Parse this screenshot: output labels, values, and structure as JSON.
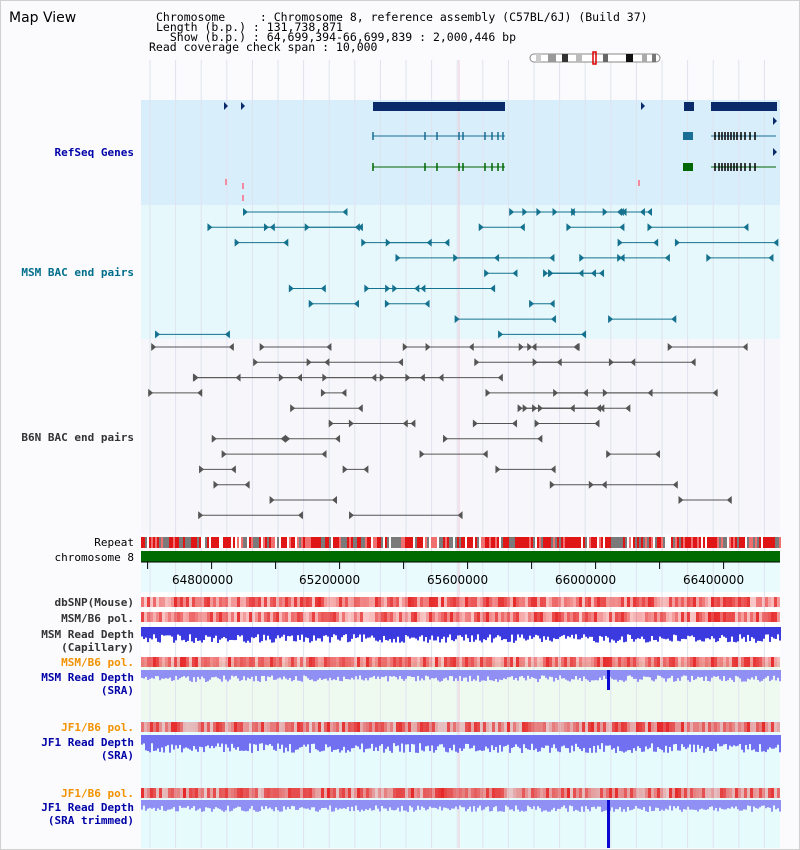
{
  "header": {
    "map_title": "Map View",
    "chromosome_line": "Chromosome     : Chromosome 8, reference assembly (C57BL/6J) (Build 37)",
    "length_line": "Length (b.p.) : 131,738,871",
    "show_line": "  Show (b.p.) : 64,699,394-66,699,839 : 2,000,446 bp",
    "coverage_line": "Read coverage check span : 10,000"
  },
  "tracks": {
    "refseq": "RefSeq Genes",
    "msm_bac": "MSM BAC end pairs",
    "b6n_bac": "B6N BAC end pairs",
    "repeat": "Repeat",
    "chromosome": "chromosome 8",
    "dbsnp": "dbSNP(Mouse)",
    "msm_b6_pol_1": "MSM/B6 pol.",
    "msm_depth_cap_1": "MSM Read Depth",
    "msm_depth_cap_2": "(Capillary)",
    "msm_b6_pol_2": "MSM/B6 pol.",
    "msm_depth_sra_1": "MSM Read Depth",
    "msm_depth_sra_2": "(SRA)",
    "jf1_pol_1": "JF1/B6 pol.",
    "jf1_depth_sra_1": "JF1 Read Depth",
    "jf1_depth_sra_2": "(SRA)",
    "jf1_pol_2": "JF1/B6 pol.",
    "jf1_depth_trim_1": "JF1 Read Depth",
    "jf1_depth_trim_2": "(SRA trimmed)"
  },
  "axis": {
    "ticks": [
      "64800000",
      "65200000",
      "65600000",
      "66000000",
      "66400000"
    ]
  },
  "colors": {
    "refseq_bg": "#d8eefa",
    "msm_bg": "#e6f8fb",
    "gene_dark": "#0a2a6a",
    "gene_teal": "#1a6d94",
    "gene_green": "#006600",
    "bac_teal": "#15728f",
    "bac_gray": "#555555",
    "chrom_green": "#006b00",
    "depth_blue": "#3a3adf",
    "depth_light": "#8f8ff4",
    "pol_red": "#e83030"
  }
}
